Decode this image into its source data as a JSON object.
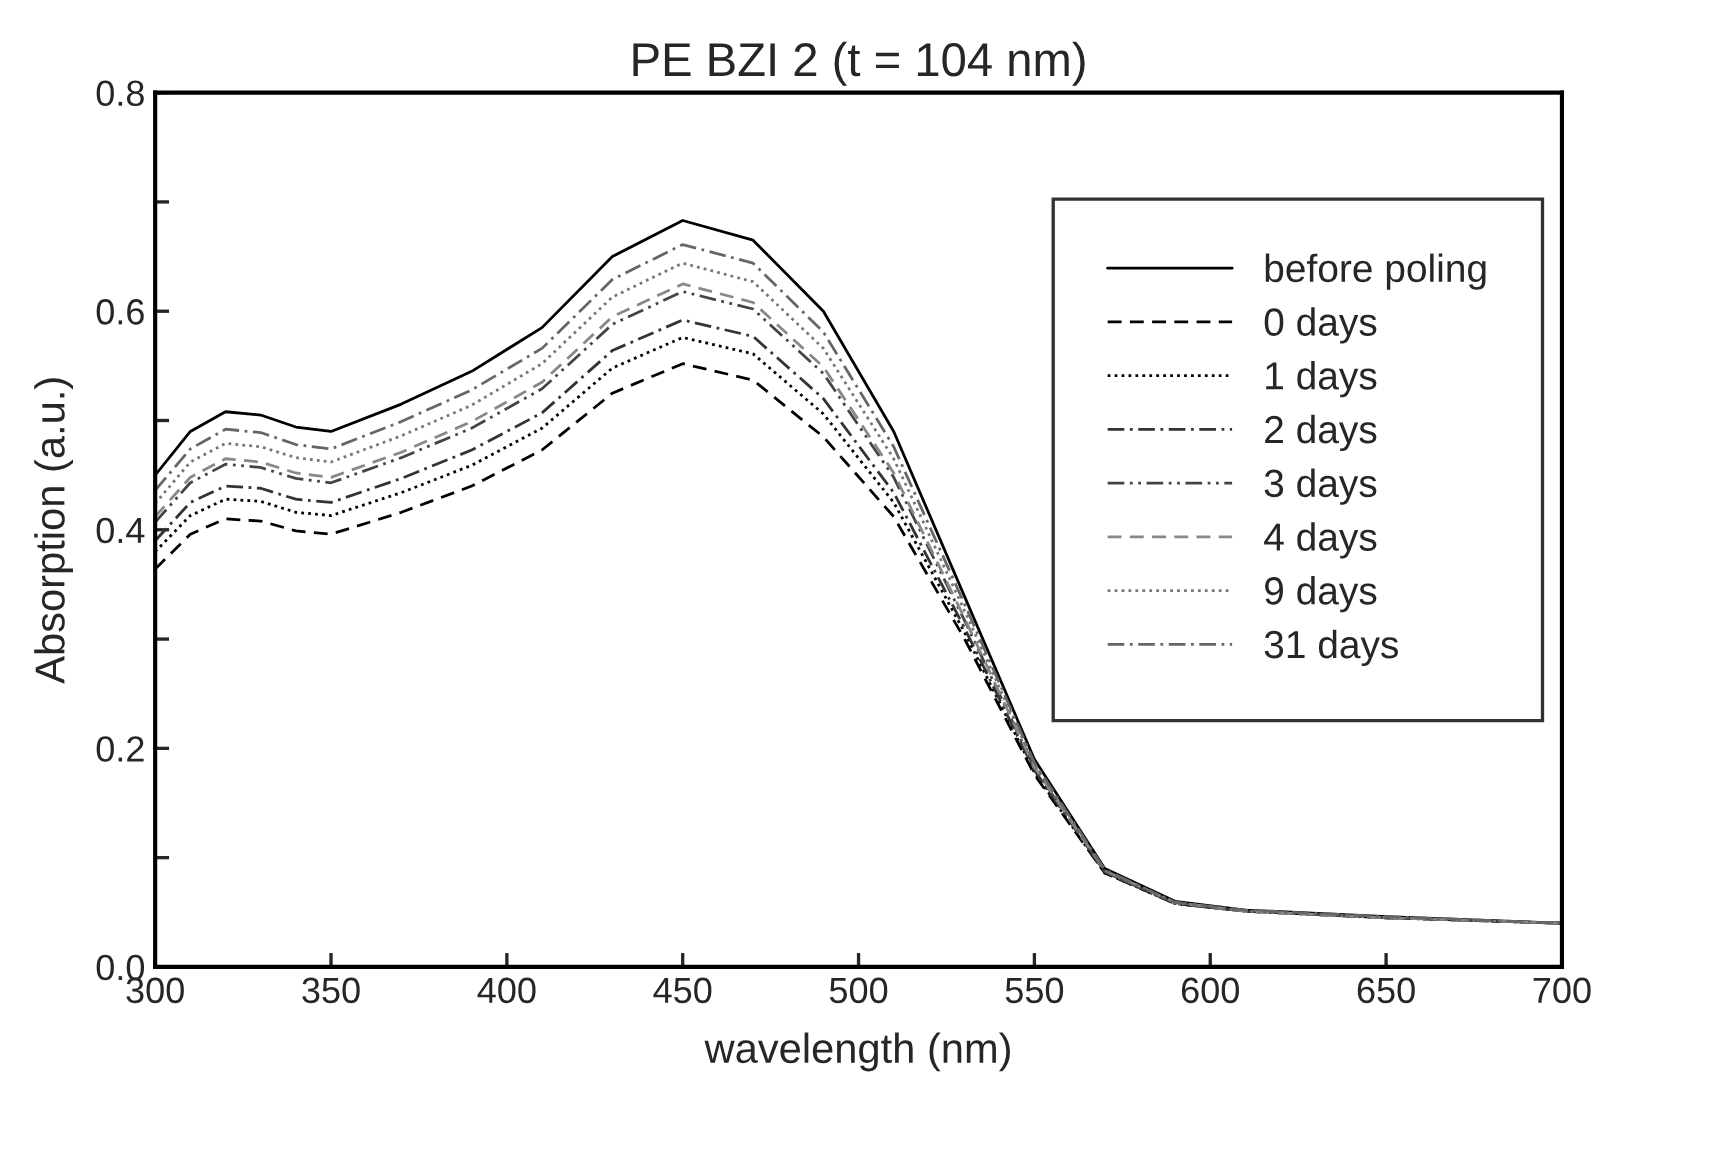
{
  "chart_data": {
    "type": "line",
    "title": "PE BZI 2 (t = 104 nm)",
    "xlabel": "wavelength (nm)",
    "ylabel": "Absorption (a.u.)",
    "x": [
      300,
      310,
      320,
      330,
      340,
      350,
      370,
      390,
      410,
      430,
      450,
      470,
      490,
      510,
      530,
      550,
      570,
      590,
      610,
      650,
      700
    ],
    "xlim": [
      300,
      700
    ],
    "ylim": [
      0.0,
      0.8
    ],
    "xticks": [
      300,
      350,
      400,
      450,
      500,
      550,
      600,
      650,
      700
    ],
    "yticks": [
      {
        "value": 0.0,
        "label": "0.0"
      },
      {
        "value": 0.1,
        "label": null
      },
      {
        "value": 0.2,
        "label": "0.2"
      },
      {
        "value": 0.3,
        "label": null
      },
      {
        "value": 0.4,
        "label": "0.4"
      },
      {
        "value": 0.5,
        "label": null
      },
      {
        "value": 0.6,
        "label": "0.6"
      },
      {
        "value": 0.7,
        "label": null
      },
      {
        "value": 0.8,
        "label": "0.8"
      }
    ],
    "grid": false,
    "legend": "right",
    "marker": "none",
    "series": [
      {
        "name": "before poling",
        "color": "#000000",
        "line_style": "solid",
        "values": [
          0.45,
          0.49,
          0.508,
          0.505,
          0.494,
          0.49,
          0.515,
          0.545,
          0.585,
          0.65,
          0.683,
          0.665,
          0.6,
          0.49,
          0.34,
          0.19,
          0.09,
          0.06,
          0.052,
          0.046,
          0.04
        ]
      },
      {
        "name": "0 days",
        "color": "#000000",
        "line_style": "dashed",
        "values": [
          0.364,
          0.396,
          0.41,
          0.408,
          0.399,
          0.396,
          0.416,
          0.44,
          0.473,
          0.525,
          0.552,
          0.537,
          0.485,
          0.412,
          0.301,
          0.176,
          0.086,
          0.058,
          0.051,
          0.045,
          0.04
        ]
      },
      {
        "name": "1 days",
        "color": "#000000",
        "line_style": "dotted",
        "values": [
          0.38,
          0.413,
          0.428,
          0.426,
          0.416,
          0.413,
          0.434,
          0.459,
          0.493,
          0.548,
          0.576,
          0.561,
          0.506,
          0.425,
          0.307,
          0.178,
          0.086,
          0.058,
          0.051,
          0.045,
          0.04
        ]
      },
      {
        "name": "2 days",
        "color": "#333333",
        "line_style": "dashdot",
        "values": [
          0.39,
          0.425,
          0.44,
          0.438,
          0.428,
          0.425,
          0.447,
          0.473,
          0.507,
          0.564,
          0.592,
          0.577,
          0.52,
          0.434,
          0.311,
          0.18,
          0.087,
          0.058,
          0.051,
          0.045,
          0.04
        ]
      },
      {
        "name": "3 days",
        "color": "#444444",
        "line_style": "dashdotdot",
        "values": [
          0.407,
          0.443,
          0.46,
          0.457,
          0.447,
          0.443,
          0.466,
          0.493,
          0.529,
          0.588,
          0.618,
          0.602,
          0.543,
          0.448,
          0.318,
          0.182,
          0.087,
          0.058,
          0.051,
          0.045,
          0.04
        ]
      },
      {
        "name": "4 days",
        "color": "#888888",
        "line_style": "dashed",
        "values": [
          0.412,
          0.448,
          0.465,
          0.462,
          0.452,
          0.448,
          0.471,
          0.499,
          0.535,
          0.595,
          0.625,
          0.608,
          0.549,
          0.452,
          0.32,
          0.183,
          0.088,
          0.059,
          0.051,
          0.045,
          0.04
        ]
      },
      {
        "name": "9 days",
        "color": "#777777",
        "line_style": "dotted",
        "values": [
          0.424,
          0.462,
          0.479,
          0.476,
          0.466,
          0.462,
          0.486,
          0.514,
          0.552,
          0.613,
          0.644,
          0.627,
          0.566,
          0.465,
          0.327,
          0.185,
          0.088,
          0.059,
          0.051,
          0.045,
          0.04
        ]
      },
      {
        "name": "31 days",
        "color": "#666666",
        "line_style": "dashdot",
        "values": [
          0.436,
          0.474,
          0.492,
          0.489,
          0.478,
          0.474,
          0.499,
          0.528,
          0.566,
          0.629,
          0.661,
          0.644,
          0.581,
          0.476,
          0.333,
          0.187,
          0.089,
          0.059,
          0.052,
          0.046,
          0.04
        ]
      }
    ]
  }
}
